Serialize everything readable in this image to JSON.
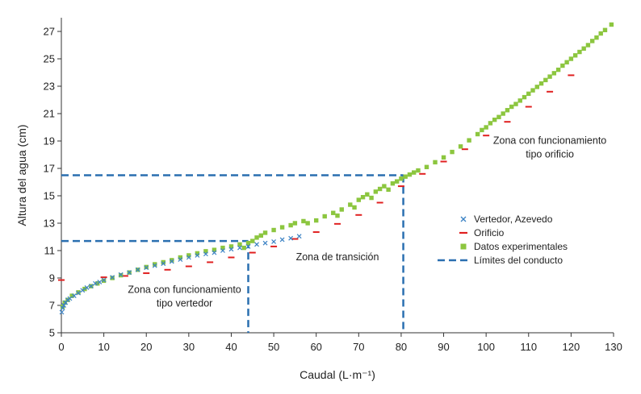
{
  "chart_data": {
    "type": "scatter",
    "xlabel": "Caudal (L·m⁻¹)",
    "ylabel": "Altura del agua (cm)",
    "xlim": [
      0,
      130
    ],
    "ylim": [
      5,
      28
    ],
    "xticks": [
      "0",
      "10",
      "20",
      "30",
      "40",
      "50",
      "60",
      "70",
      "80",
      "90",
      "100",
      "110",
      "120",
      "130"
    ],
    "yticks": [
      "5",
      "7",
      "9",
      "11",
      "13",
      "15",
      "17",
      "19",
      "21",
      "23",
      "25",
      "27"
    ],
    "grid": false,
    "legend_position": "right",
    "series": [
      {
        "name": "Vertedor, Azevedo",
        "marker": "x",
        "color": "#3b82c4",
        "points": [
          [
            0.1,
            6.5
          ],
          [
            0.3,
            6.8
          ],
          [
            0.6,
            7.0
          ],
          [
            1,
            7.2
          ],
          [
            1.5,
            7.4
          ],
          [
            2,
            7.5
          ],
          [
            3,
            7.7
          ],
          [
            4,
            7.9
          ],
          [
            5,
            8.1
          ],
          [
            6,
            8.3
          ],
          [
            7,
            8.4
          ],
          [
            8,
            8.6
          ],
          [
            9,
            8.7
          ],
          [
            10,
            8.85
          ],
          [
            12,
            9.05
          ],
          [
            14,
            9.25
          ],
          [
            16,
            9.4
          ],
          [
            18,
            9.6
          ],
          [
            20,
            9.75
          ],
          [
            22,
            9.9
          ],
          [
            24,
            10.05
          ],
          [
            26,
            10.2
          ],
          [
            28,
            10.35
          ],
          [
            30,
            10.5
          ],
          [
            32,
            10.65
          ],
          [
            34,
            10.75
          ],
          [
            36,
            10.85
          ],
          [
            38,
            11.0
          ],
          [
            40,
            11.1
          ],
          [
            42,
            11.2
          ],
          [
            44,
            11.3
          ],
          [
            46,
            11.45
          ],
          [
            48,
            11.55
          ],
          [
            50,
            11.65
          ],
          [
            52,
            11.8
          ],
          [
            54,
            11.9
          ],
          [
            56,
            12.05
          ]
        ]
      },
      {
        "name": "Orificio",
        "marker": "dash",
        "color": "#e02020",
        "points": [
          [
            0,
            8.85
          ],
          [
            10,
            9.05
          ],
          [
            15,
            9.15
          ],
          [
            20,
            9.35
          ],
          [
            25,
            9.6
          ],
          [
            30,
            9.85
          ],
          [
            35,
            10.15
          ],
          [
            40,
            10.5
          ],
          [
            45,
            10.85
          ],
          [
            50,
            11.3
          ],
          [
            55,
            11.85
          ],
          [
            60,
            12.35
          ],
          [
            65,
            12.95
          ],
          [
            70,
            13.6
          ],
          [
            75,
            14.5
          ],
          [
            80,
            15.7
          ],
          [
            85,
            16.6
          ],
          [
            90,
            17.5
          ],
          [
            95,
            18.4
          ],
          [
            100,
            19.4
          ],
          [
            105,
            20.4
          ],
          [
            110,
            21.5
          ],
          [
            115,
            22.6
          ],
          [
            120,
            23.8
          ]
        ]
      },
      {
        "name": "Datos experimentales",
        "marker": "square",
        "color": "#8cc63f",
        "points": [
          [
            0.3,
            6.9
          ],
          [
            0.8,
            7.2
          ],
          [
            1.5,
            7.4
          ],
          [
            2.5,
            7.7
          ],
          [
            4,
            7.95
          ],
          [
            5.5,
            8.2
          ],
          [
            7,
            8.4
          ],
          [
            8.5,
            8.6
          ],
          [
            10,
            8.8
          ],
          [
            12,
            9.0
          ],
          [
            14,
            9.2
          ],
          [
            16,
            9.4
          ],
          [
            18,
            9.6
          ],
          [
            20,
            9.8
          ],
          [
            22,
            10.0
          ],
          [
            24,
            10.15
          ],
          [
            26,
            10.3
          ],
          [
            28,
            10.5
          ],
          [
            30,
            10.65
          ],
          [
            32,
            10.8
          ],
          [
            34,
            10.95
          ],
          [
            36,
            11.05
          ],
          [
            38,
            11.2
          ],
          [
            40,
            11.3
          ],
          [
            42,
            11.45
          ],
          [
            43,
            11.2
          ],
          [
            44,
            11.55
          ],
          [
            45,
            11.7
          ],
          [
            46,
            11.95
          ],
          [
            47,
            12.1
          ],
          [
            48,
            12.3
          ],
          [
            50,
            12.5
          ],
          [
            52,
            12.7
          ],
          [
            54,
            12.85
          ],
          [
            55,
            13.0
          ],
          [
            57,
            13.15
          ],
          [
            58,
            13.0
          ],
          [
            60,
            13.2
          ],
          [
            62,
            13.5
          ],
          [
            64,
            13.75
          ],
          [
            65,
            13.55
          ],
          [
            66,
            14.0
          ],
          [
            68,
            14.35
          ],
          [
            69,
            14.15
          ],
          [
            70,
            14.7
          ],
          [
            71,
            14.9
          ],
          [
            72,
            15.1
          ],
          [
            73,
            14.85
          ],
          [
            74,
            15.3
          ],
          [
            75,
            15.5
          ],
          [
            76,
            15.7
          ],
          [
            77,
            15.45
          ],
          [
            78,
            15.9
          ],
          [
            79,
            16.05
          ],
          [
            80,
            16.25
          ],
          [
            81,
            16.4
          ],
          [
            82,
            16.55
          ],
          [
            83,
            16.7
          ],
          [
            84,
            16.85
          ],
          [
            86,
            17.1
          ],
          [
            88,
            17.45
          ],
          [
            90,
            17.8
          ],
          [
            92,
            18.2
          ],
          [
            94,
            18.6
          ],
          [
            96,
            19.05
          ],
          [
            98,
            19.5
          ],
          [
            99,
            19.8
          ],
          [
            100,
            20.0
          ],
          [
            101,
            20.3
          ],
          [
            102,
            20.55
          ],
          [
            103,
            20.75
          ],
          [
            104,
            21.0
          ],
          [
            105,
            21.25
          ],
          [
            106,
            21.5
          ],
          [
            107,
            21.7
          ],
          [
            108,
            21.95
          ],
          [
            109,
            22.2
          ],
          [
            110,
            22.45
          ],
          [
            111,
            22.7
          ],
          [
            112,
            22.95
          ],
          [
            113,
            23.2
          ],
          [
            114,
            23.45
          ],
          [
            115,
            23.7
          ],
          [
            116,
            23.95
          ],
          [
            117,
            24.2
          ],
          [
            118,
            24.5
          ],
          [
            119,
            24.75
          ],
          [
            120,
            25.0
          ],
          [
            121,
            25.25
          ],
          [
            122,
            25.5
          ],
          [
            123,
            25.75
          ],
          [
            124,
            26.0
          ],
          [
            125,
            26.3
          ],
          [
            126,
            26.55
          ],
          [
            127,
            26.85
          ],
          [
            128,
            27.1
          ],
          [
            129.5,
            27.5
          ]
        ]
      },
      {
        "name": "Límites del conducto",
        "marker": "dashed-line",
        "color": "#2a6fb0",
        "segments": [
          [
            [
              0,
              11.7
            ],
            [
              44,
              11.7
            ]
          ],
          [
            [
              44,
              11.7
            ],
            [
              44,
              5
            ]
          ],
          [
            [
              0,
              16.5
            ],
            [
              80.5,
              16.5
            ]
          ],
          [
            [
              80.5,
              16.5
            ],
            [
              80.5,
              5
            ]
          ]
        ]
      }
    ],
    "annotations": [
      {
        "lines": [
          "Zona con funcionamiento",
          "tipo vertedor"
        ],
        "x": 29,
        "y": 7.9
      },
      {
        "lines": [
          "Zona de transición"
        ],
        "x": 65,
        "y": 10.3
      },
      {
        "lines": [
          "Zona con funcionamiento",
          "tipo orificio"
        ],
        "x": 115,
        "y": 18.8
      }
    ]
  }
}
